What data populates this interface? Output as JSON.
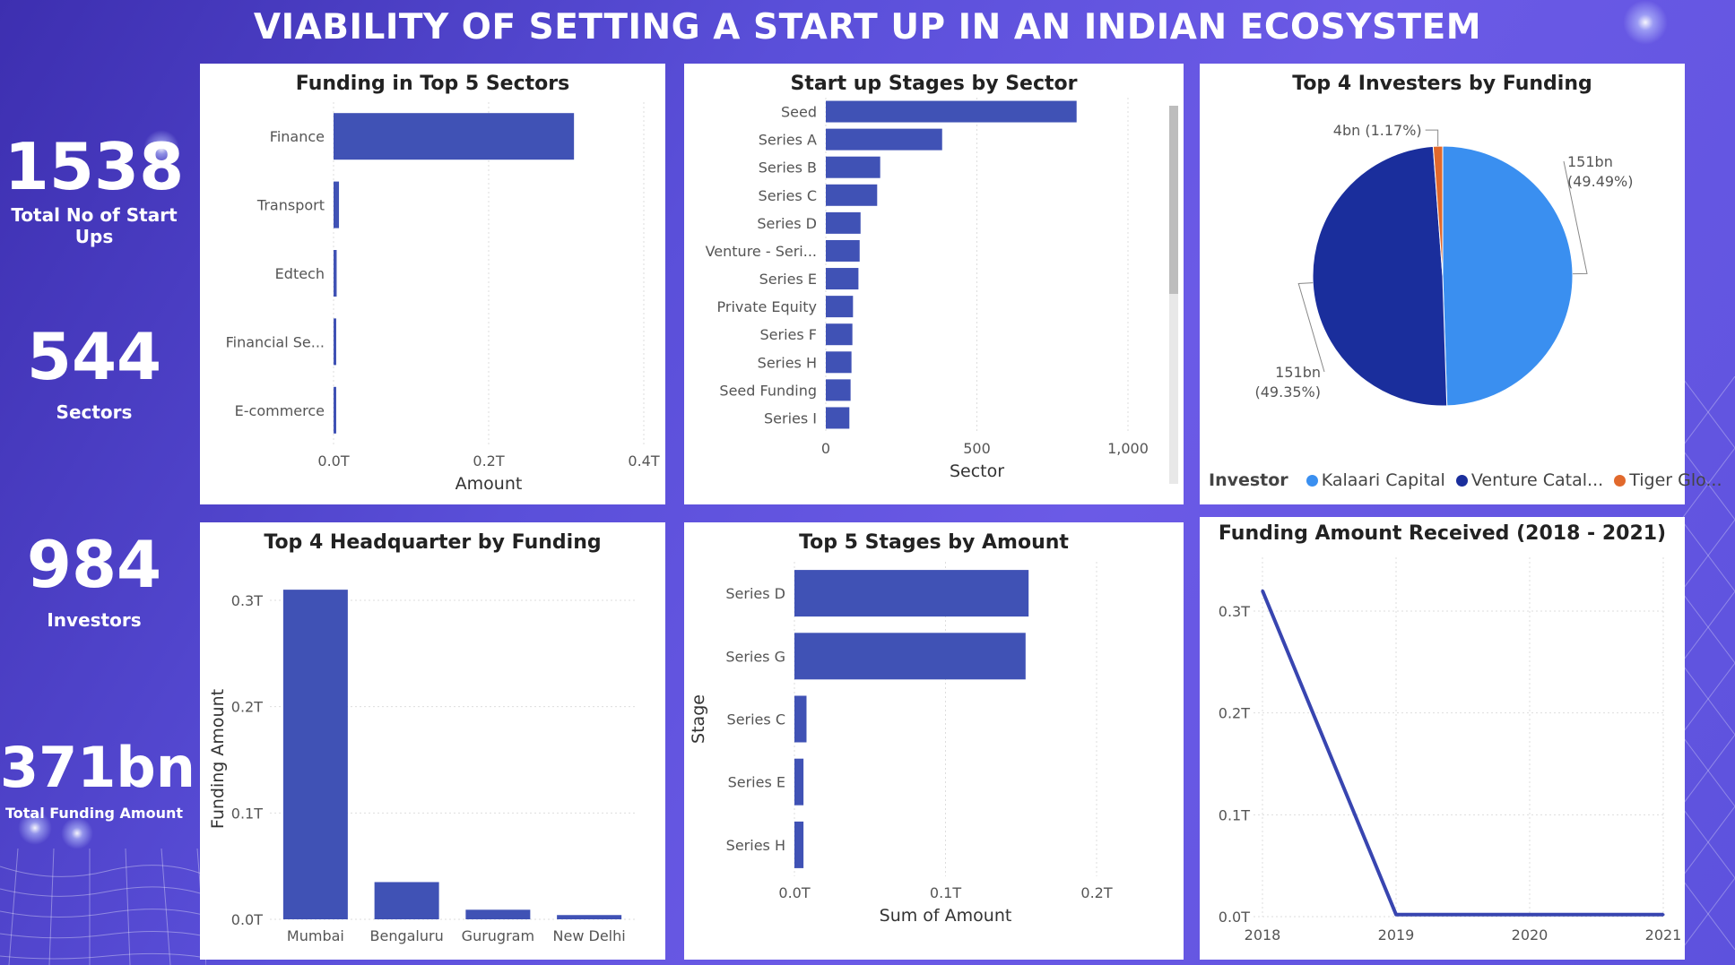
{
  "title": "VIABILITY OF SETTING A START UP IN AN INDIAN ECOSYSTEM",
  "kpis": [
    {
      "value": "1538",
      "label": "Total No of Start Ups"
    },
    {
      "value": "544",
      "label": "Sectors"
    },
    {
      "value": "984",
      "label": "Investors"
    },
    {
      "value": "371bn",
      "label": "Total Funding Amount"
    }
  ],
  "colors": {
    "bar": "#4052b5",
    "pie": [
      "#3a8ff0",
      "#1a2e9c",
      "#e1692c"
    ],
    "line": "#3845b0"
  },
  "chart_data": [
    {
      "type": "bar",
      "orientation": "horizontal",
      "title": "Funding in Top 5 Sectors",
      "categories": [
        "Finance",
        "Transport",
        "Edtech",
        "Financial Se...",
        "E-commerce"
      ],
      "values": [
        0.31,
        0.007,
        0.004,
        0.003,
        0.003
      ],
      "xlabel": "Amount",
      "ylabel": "",
      "xticks": [
        "0.0T",
        "0.2T",
        "0.4T"
      ],
      "xlim": [
        0,
        0.4
      ]
    },
    {
      "type": "bar",
      "orientation": "horizontal",
      "title": "Start up Stages by Sector",
      "categories": [
        "Seed",
        "Series A",
        "Series B",
        "Series C",
        "Series D",
        "Venture - Seri...",
        "Series E",
        "Private Equity",
        "Series F",
        "Series H",
        "Seed Funding",
        "Series I"
      ],
      "values": [
        830,
        385,
        180,
        170,
        115,
        112,
        108,
        90,
        88,
        85,
        82,
        78
      ],
      "xlabel": "Sector",
      "ylabel": "",
      "xticks": [
        "0",
        "500",
        "1,000"
      ],
      "xlim": [
        0,
        1000
      ]
    },
    {
      "type": "pie",
      "title": "Top 4 Investers by Funding",
      "legend_title": "Investor",
      "legend": [
        "Kalaari Capital",
        "Venture Catal...",
        "Tiger Glo..."
      ],
      "slices": [
        {
          "name": "Kalaari Capital",
          "value": 49.49,
          "label": "151bn",
          "pct": "(49.49%)"
        },
        {
          "name": "Venture Catal...",
          "value": 49.35,
          "label": "151bn",
          "pct": "(49.35%)"
        },
        {
          "name": "Tiger Glo...",
          "value": 1.17,
          "label": "4bn",
          "pct": "(1.17%)"
        }
      ]
    },
    {
      "type": "bar",
      "orientation": "vertical",
      "title": "Top 4 Headquarter by Funding",
      "categories": [
        "Mumbai",
        "Bengaluru",
        "Gurugram",
        "New Delhi"
      ],
      "values": [
        0.31,
        0.035,
        0.009,
        0.004
      ],
      "xlabel": "",
      "ylabel": "Funding Amount",
      "yticks": [
        "0.0T",
        "0.1T",
        "0.2T",
        "0.3T"
      ],
      "ylim": [
        0,
        0.3
      ]
    },
    {
      "type": "bar",
      "orientation": "horizontal",
      "title": "Top 5 Stages by Amount",
      "categories": [
        "Series D",
        "Series G",
        "Series C",
        "Series E",
        "Series H"
      ],
      "values": [
        0.155,
        0.153,
        0.008,
        0.006,
        0.006
      ],
      "xlabel": "Sum of Amount",
      "ylabel": "Stage",
      "xticks": [
        "0.0T",
        "0.1T",
        "0.2T"
      ],
      "xlim": [
        0,
        0.2
      ]
    },
    {
      "type": "line",
      "title": "Funding Amount Received (2018 - 2021)",
      "x": [
        "2018",
        "2019",
        "2020",
        "2021"
      ],
      "values": [
        0.32,
        0.002,
        0.002,
        0.002
      ],
      "xlabel": "",
      "ylabel": "",
      "yticks": [
        "0.0T",
        "0.1T",
        "0.2T",
        "0.3T"
      ],
      "ylim": [
        0,
        0.3
      ]
    }
  ]
}
